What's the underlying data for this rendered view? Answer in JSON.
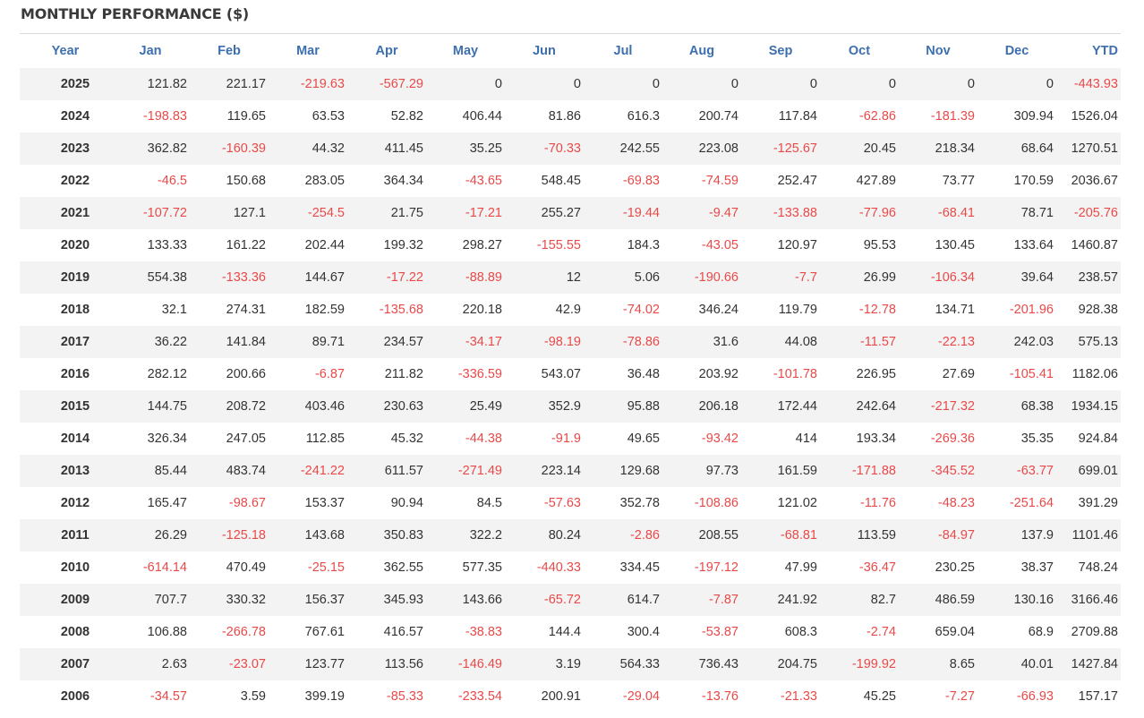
{
  "title": "MONTHLY PERFORMANCE ($)",
  "headers": [
    "Year",
    "Jan",
    "Feb",
    "Mar",
    "Apr",
    "May",
    "Jun",
    "Jul",
    "Aug",
    "Sep",
    "Oct",
    "Nov",
    "Dec",
    "YTD"
  ],
  "rows": [
    [
      "2025",
      "121.82",
      "221.17",
      "-219.63",
      "-567.29",
      "0",
      "0",
      "0",
      "0",
      "0",
      "0",
      "0",
      "0",
      "-443.93"
    ],
    [
      "2024",
      "-198.83",
      "119.65",
      "63.53",
      "52.82",
      "406.44",
      "81.86",
      "616.3",
      "200.74",
      "117.84",
      "-62.86",
      "-181.39",
      "309.94",
      "1526.04"
    ],
    [
      "2023",
      "362.82",
      "-160.39",
      "44.32",
      "411.45",
      "35.25",
      "-70.33",
      "242.55",
      "223.08",
      "-125.67",
      "20.45",
      "218.34",
      "68.64",
      "1270.51"
    ],
    [
      "2022",
      "-46.5",
      "150.68",
      "283.05",
      "364.34",
      "-43.65",
      "548.45",
      "-69.83",
      "-74.59",
      "252.47",
      "427.89",
      "73.77",
      "170.59",
      "2036.67"
    ],
    [
      "2021",
      "-107.72",
      "127.1",
      "-254.5",
      "21.75",
      "-17.21",
      "255.27",
      "-19.44",
      "-9.47",
      "-133.88",
      "-77.96",
      "-68.41",
      "78.71",
      "-205.76"
    ],
    [
      "2020",
      "133.33",
      "161.22",
      "202.44",
      "199.32",
      "298.27",
      "-155.55",
      "184.3",
      "-43.05",
      "120.97",
      "95.53",
      "130.45",
      "133.64",
      "1460.87"
    ],
    [
      "2019",
      "554.38",
      "-133.36",
      "144.67",
      "-17.22",
      "-88.89",
      "12",
      "5.06",
      "-190.66",
      "-7.7",
      "26.99",
      "-106.34",
      "39.64",
      "238.57"
    ],
    [
      "2018",
      "32.1",
      "274.31",
      "182.59",
      "-135.68",
      "220.18",
      "42.9",
      "-74.02",
      "346.24",
      "119.79",
      "-12.78",
      "134.71",
      "-201.96",
      "928.38"
    ],
    [
      "2017",
      "36.22",
      "141.84",
      "89.71",
      "234.57",
      "-34.17",
      "-98.19",
      "-78.86",
      "31.6",
      "44.08",
      "-11.57",
      "-22.13",
      "242.03",
      "575.13"
    ],
    [
      "2016",
      "282.12",
      "200.66",
      "-6.87",
      "211.82",
      "-336.59",
      "543.07",
      "36.48",
      "203.92",
      "-101.78",
      "226.95",
      "27.69",
      "-105.41",
      "1182.06"
    ],
    [
      "2015",
      "144.75",
      "208.72",
      "403.46",
      "230.63",
      "25.49",
      "352.9",
      "95.88",
      "206.18",
      "172.44",
      "242.64",
      "-217.32",
      "68.38",
      "1934.15"
    ],
    [
      "2014",
      "326.34",
      "247.05",
      "112.85",
      "45.32",
      "-44.38",
      "-91.9",
      "49.65",
      "-93.42",
      "414",
      "193.34",
      "-269.36",
      "35.35",
      "924.84"
    ],
    [
      "2013",
      "85.44",
      "483.74",
      "-241.22",
      "611.57",
      "-271.49",
      "223.14",
      "129.68",
      "97.73",
      "161.59",
      "-171.88",
      "-345.52",
      "-63.77",
      "699.01"
    ],
    [
      "2012",
      "165.47",
      "-98.67",
      "153.37",
      "90.94",
      "84.5",
      "-57.63",
      "352.78",
      "-108.86",
      "121.02",
      "-11.76",
      "-48.23",
      "-251.64",
      "391.29"
    ],
    [
      "2011",
      "26.29",
      "-125.18",
      "143.68",
      "350.83",
      "322.2",
      "80.24",
      "-2.86",
      "208.55",
      "-68.81",
      "113.59",
      "-84.97",
      "137.9",
      "1101.46"
    ],
    [
      "2010",
      "-614.14",
      "470.49",
      "-25.15",
      "362.55",
      "577.35",
      "-440.33",
      "334.45",
      "-197.12",
      "47.99",
      "-36.47",
      "230.25",
      "38.37",
      "748.24"
    ],
    [
      "2009",
      "707.7",
      "330.32",
      "156.37",
      "345.93",
      "143.66",
      "-65.72",
      "614.7",
      "-7.87",
      "241.92",
      "82.7",
      "486.59",
      "130.16",
      "3166.46"
    ],
    [
      "2008",
      "106.88",
      "-266.78",
      "767.61",
      "416.57",
      "-38.83",
      "144.4",
      "300.4",
      "-53.87",
      "608.3",
      "-2.74",
      "659.04",
      "68.9",
      "2709.88"
    ],
    [
      "2007",
      "2.63",
      "-23.07",
      "123.77",
      "113.56",
      "-146.49",
      "3.19",
      "564.33",
      "736.43",
      "204.75",
      "-199.92",
      "8.65",
      "40.01",
      "1427.84"
    ],
    [
      "2006",
      "-34.57",
      "3.59",
      "399.19",
      "-85.33",
      "-233.54",
      "200.91",
      "-29.04",
      "-13.76",
      "-21.33",
      "45.25",
      "-7.27",
      "-66.93",
      "157.17"
    ]
  ],
  "colors": {
    "header": "#3d6fae",
    "negative": "#e84a4a",
    "text": "#333333",
    "stripe": "#f3f3f3"
  }
}
